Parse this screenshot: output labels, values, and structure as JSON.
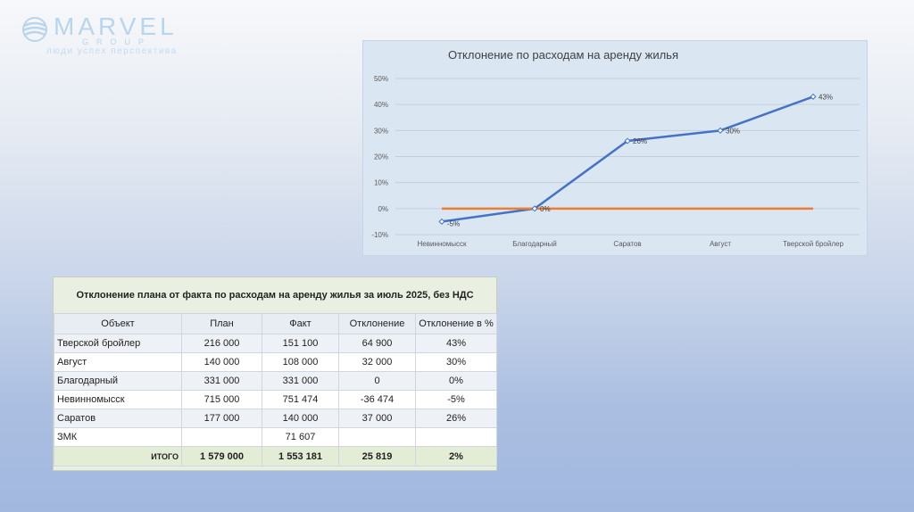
{
  "logo": {
    "brand": "MARVEL",
    "group": "GROUP",
    "tagline": "люди успех перспектива"
  },
  "colors": {
    "line_primary": "#4472c4",
    "line_zero": "#ed7d31",
    "chart_bg": "#dbe6f3",
    "table_header_bg": "#eaf0e1"
  },
  "chart_data": {
    "type": "line",
    "title": "Отклонение по расходам на аренду жилья",
    "categories": [
      "Невинномысск",
      "Благодарный",
      "Саратов",
      "Август",
      "Тверской бройлер"
    ],
    "series": [
      {
        "values": [
          -5,
          0,
          26,
          30,
          43
        ],
        "data_labels": [
          "-5%",
          "0%",
          "26%",
          "30%",
          "43%"
        ]
      },
      {
        "values": [
          0,
          0,
          0,
          0,
          0
        ]
      }
    ],
    "y_ticks": [
      "50%",
      "40%",
      "30%",
      "20%",
      "10%",
      "0%",
      "-10%"
    ],
    "y_tick_values": [
      50,
      40,
      30,
      20,
      10,
      0,
      -10
    ],
    "ylim": [
      -10,
      50
    ],
    "grid": true,
    "xlabel": "",
    "ylabel": ""
  },
  "table": {
    "title": "Отклонение плана от факта по расходам на аренду жилья за июль 2025, без НДС",
    "columns": [
      "Объект",
      "План",
      "Факт",
      "Отклонение",
      "Отклонение в %"
    ],
    "rows": [
      [
        "Тверской бройлер",
        "216 000",
        "151 100",
        "64 900",
        "43%"
      ],
      [
        "Август",
        "140 000",
        "108 000",
        "32 000",
        "30%"
      ],
      [
        "Благодарный",
        "331 000",
        "331 000",
        "0",
        "0%"
      ],
      [
        "Невинномысск",
        "715 000",
        "751 474",
        "-36 474",
        "-5%"
      ],
      [
        "Саратов",
        "177 000",
        "140 000",
        "37 000",
        "26%"
      ],
      [
        "ЗМК",
        "",
        "71 607",
        "",
        ""
      ]
    ],
    "total": [
      "ИТОГО",
      "1 579 000",
      "1 553 181",
      "25 819",
      "2%"
    ]
  }
}
